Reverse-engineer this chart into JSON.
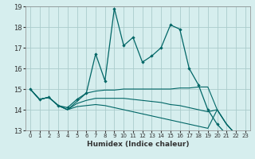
{
  "xlabel": "Humidex (Indice chaleur)",
  "ylabel": "",
  "background_color": "#d6eeee",
  "grid_color": "#aacccc",
  "line_color": "#006666",
  "xlim": [
    -0.5,
    23.5
  ],
  "ylim": [
    13,
    19
  ],
  "yticks": [
    13,
    14,
    15,
    16,
    17,
    18,
    19
  ],
  "xticks": [
    0,
    1,
    2,
    3,
    4,
    5,
    6,
    7,
    8,
    9,
    10,
    11,
    12,
    13,
    14,
    15,
    16,
    17,
    18,
    19,
    20,
    21,
    22,
    23
  ],
  "series": [
    {
      "x": [
        0,
        1,
        2,
        3,
        4,
        5,
        6,
        7,
        8,
        9,
        10,
        11,
        12,
        13,
        14,
        15,
        16,
        17,
        18,
        19,
        20,
        21,
        22,
        23
      ],
      "y": [
        15.0,
        14.5,
        14.6,
        14.2,
        14.1,
        14.5,
        14.8,
        16.7,
        15.4,
        18.9,
        17.1,
        17.5,
        16.3,
        16.6,
        17.0,
        18.1,
        17.9,
        16.0,
        15.2,
        14.0,
        13.3,
        12.8,
        12.6,
        12.6
      ],
      "marker": true
    },
    {
      "x": [
        0,
        1,
        2,
        3,
        4,
        5,
        6,
        7,
        8,
        9,
        10,
        11,
        12,
        13,
        14,
        15,
        16,
        17,
        18,
        19,
        20,
        21,
        22,
        23
      ],
      "y": [
        15.0,
        14.5,
        14.6,
        14.2,
        14.0,
        14.4,
        14.8,
        14.9,
        14.95,
        14.95,
        15.0,
        15.0,
        15.0,
        15.0,
        15.0,
        15.0,
        15.05,
        15.05,
        15.1,
        15.1,
        14.0,
        13.3,
        12.8,
        12.6
      ],
      "marker": false
    },
    {
      "x": [
        0,
        1,
        2,
        3,
        4,
        5,
        6,
        7,
        8,
        9,
        10,
        11,
        12,
        13,
        14,
        15,
        16,
        17,
        18,
        19,
        20,
        21,
        22,
        23
      ],
      "y": [
        15.0,
        14.5,
        14.6,
        14.2,
        14.0,
        14.3,
        14.45,
        14.55,
        14.55,
        14.55,
        14.55,
        14.5,
        14.45,
        14.4,
        14.35,
        14.25,
        14.2,
        14.1,
        14.0,
        13.9,
        14.0,
        13.3,
        12.8,
        12.6
      ],
      "marker": false
    },
    {
      "x": [
        0,
        1,
        2,
        3,
        4,
        5,
        6,
        7,
        8,
        9,
        10,
        11,
        12,
        13,
        14,
        15,
        16,
        17,
        18,
        19,
        20,
        21,
        22,
        23
      ],
      "y": [
        15.0,
        14.5,
        14.6,
        14.2,
        14.0,
        14.15,
        14.2,
        14.25,
        14.2,
        14.1,
        14.0,
        13.9,
        13.8,
        13.7,
        13.6,
        13.5,
        13.4,
        13.3,
        13.2,
        13.1,
        14.0,
        13.3,
        12.8,
        12.6
      ],
      "marker": false
    }
  ]
}
